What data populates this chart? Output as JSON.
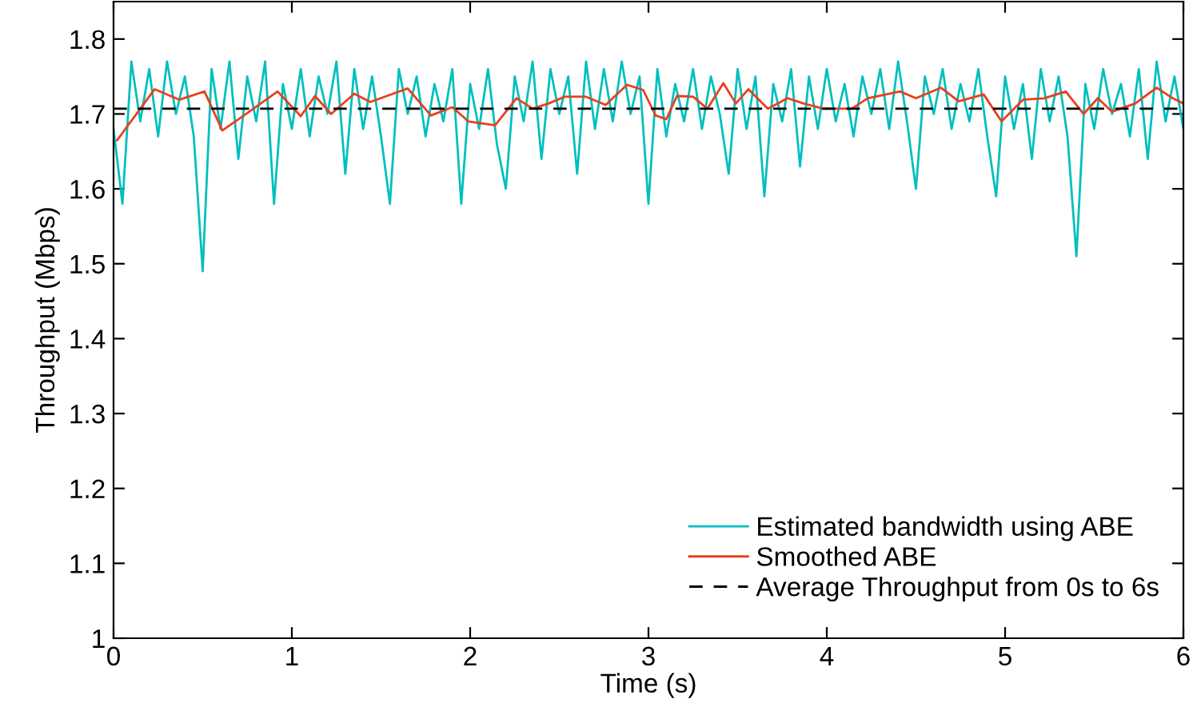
{
  "chart_data": {
    "type": "line",
    "xlabel": "Time (s)",
    "ylabel": "Throughput (Mbps)",
    "xlim": [
      0,
      6
    ],
    "xticks": [
      0,
      1,
      2,
      3,
      4,
      5,
      6
    ],
    "ylim": [
      1,
      1.85
    ],
    "yticks": [
      1,
      1.1,
      1.2,
      1.3,
      1.4,
      1.5,
      1.6,
      1.7,
      1.8
    ],
    "grid": false,
    "legend": "bottom right",
    "line_style": "solid",
    "marker": "none",
    "series": [
      {
        "name": "Estimated bandwidth using ABE",
        "color": "#00bfbf",
        "x": [
          0,
          0.05,
          0.1,
          0.15,
          0.2,
          0.25,
          0.3,
          0.35,
          0.4,
          0.45,
          0.5,
          0.55,
          0.6,
          0.65,
          0.7,
          0.75,
          0.8,
          0.85,
          0.9,
          0.95,
          1.0,
          1.05,
          1.1,
          1.15,
          1.2,
          1.25,
          1.3,
          1.35,
          1.4,
          1.45,
          1.5,
          1.55,
          1.6,
          1.65,
          1.7,
          1.75,
          1.8,
          1.85,
          1.9,
          1.95,
          2.0,
          2.05,
          2.1,
          2.15,
          2.2,
          2.25,
          2.3,
          2.35,
          2.4,
          2.45,
          2.5,
          2.55,
          2.6,
          2.65,
          2.7,
          2.75,
          2.8,
          2.85,
          2.9,
          2.95,
          3.0,
          3.05,
          3.1,
          3.15,
          3.2,
          3.25,
          3.3,
          3.35,
          3.4,
          3.45,
          3.5,
          3.55,
          3.6,
          3.65,
          3.7,
          3.75,
          3.8,
          3.85,
          3.9,
          3.95,
          4.0,
          4.05,
          4.1,
          4.15,
          4.2,
          4.25,
          4.3,
          4.35,
          4.4,
          4.45,
          4.5,
          4.55,
          4.6,
          4.65,
          4.7,
          4.75,
          4.8,
          4.85,
          4.9,
          4.95,
          5.0,
          5.05,
          5.1,
          5.15,
          5.2,
          5.25,
          5.3,
          5.35,
          5.4,
          5.45,
          5.5,
          5.55,
          5.6,
          5.65,
          5.7,
          5.75,
          5.8,
          5.85,
          5.9,
          5.95,
          6.0
        ],
        "values": [
          1.68,
          1.58,
          1.77,
          1.69,
          1.76,
          1.67,
          1.77,
          1.7,
          1.75,
          1.67,
          1.49,
          1.76,
          1.68,
          1.77,
          1.64,
          1.75,
          1.69,
          1.77,
          1.58,
          1.74,
          1.68,
          1.76,
          1.67,
          1.75,
          1.7,
          1.77,
          1.62,
          1.76,
          1.68,
          1.75,
          1.67,
          1.58,
          1.76,
          1.7,
          1.75,
          1.67,
          1.74,
          1.69,
          1.76,
          1.58,
          1.74,
          1.68,
          1.76,
          1.66,
          1.6,
          1.75,
          1.69,
          1.77,
          1.64,
          1.76,
          1.7,
          1.75,
          1.62,
          1.77,
          1.68,
          1.76,
          1.69,
          1.77,
          1.7,
          1.75,
          1.58,
          1.76,
          1.67,
          1.74,
          1.69,
          1.76,
          1.68,
          1.75,
          1.7,
          1.62,
          1.76,
          1.68,
          1.75,
          1.59,
          1.74,
          1.69,
          1.76,
          1.63,
          1.75,
          1.68,
          1.76,
          1.69,
          1.74,
          1.67,
          1.75,
          1.7,
          1.76,
          1.68,
          1.77,
          1.69,
          1.6,
          1.75,
          1.7,
          1.76,
          1.68,
          1.74,
          1.69,
          1.76,
          1.67,
          1.59,
          1.75,
          1.68,
          1.74,
          1.64,
          1.76,
          1.69,
          1.75,
          1.67,
          1.51,
          1.74,
          1.68,
          1.76,
          1.7,
          1.74,
          1.67,
          1.76,
          1.64,
          1.77,
          1.69,
          1.75,
          1.68
        ]
      },
      {
        "name": "Smoothed ABE",
        "color": "#e8401c",
        "x": [
          0.02,
          0.23,
          0.37,
          0.51,
          0.61,
          0.72,
          0.92,
          1.05,
          1.13,
          1.22,
          1.35,
          1.44,
          1.65,
          1.78,
          1.9,
          1.99,
          2.14,
          2.26,
          2.35,
          2.44,
          2.53,
          2.65,
          2.76,
          2.88,
          2.97,
          3.04,
          3.1,
          3.16,
          3.25,
          3.33,
          3.42,
          3.49,
          3.56,
          3.67,
          3.78,
          3.87,
          3.98,
          4.14,
          4.23,
          4.41,
          4.5,
          4.64,
          4.74,
          4.88,
          4.98,
          5.1,
          5.22,
          5.34,
          5.44,
          5.52,
          5.6,
          5.73,
          5.85,
          5.94,
          6.0
        ],
        "values": [
          1.665,
          1.733,
          1.719,
          1.73,
          1.678,
          1.696,
          1.73,
          1.697,
          1.724,
          1.7,
          1.727,
          1.716,
          1.734,
          1.698,
          1.709,
          1.69,
          1.685,
          1.721,
          1.707,
          1.714,
          1.723,
          1.723,
          1.712,
          1.739,
          1.732,
          1.698,
          1.693,
          1.724,
          1.723,
          1.707,
          1.741,
          1.714,
          1.733,
          1.707,
          1.721,
          1.714,
          1.707,
          1.707,
          1.721,
          1.73,
          1.721,
          1.735,
          1.717,
          1.726,
          1.69,
          1.719,
          1.721,
          1.73,
          1.7,
          1.721,
          1.703,
          1.714,
          1.735,
          1.721,
          1.714
        ]
      }
    ],
    "ref_lines": [
      {
        "axis": "y",
        "value": 1.707,
        "label": "Average Throughput from 0s to 6s",
        "color": "#000000",
        "line_style": "dashed"
      }
    ]
  }
}
